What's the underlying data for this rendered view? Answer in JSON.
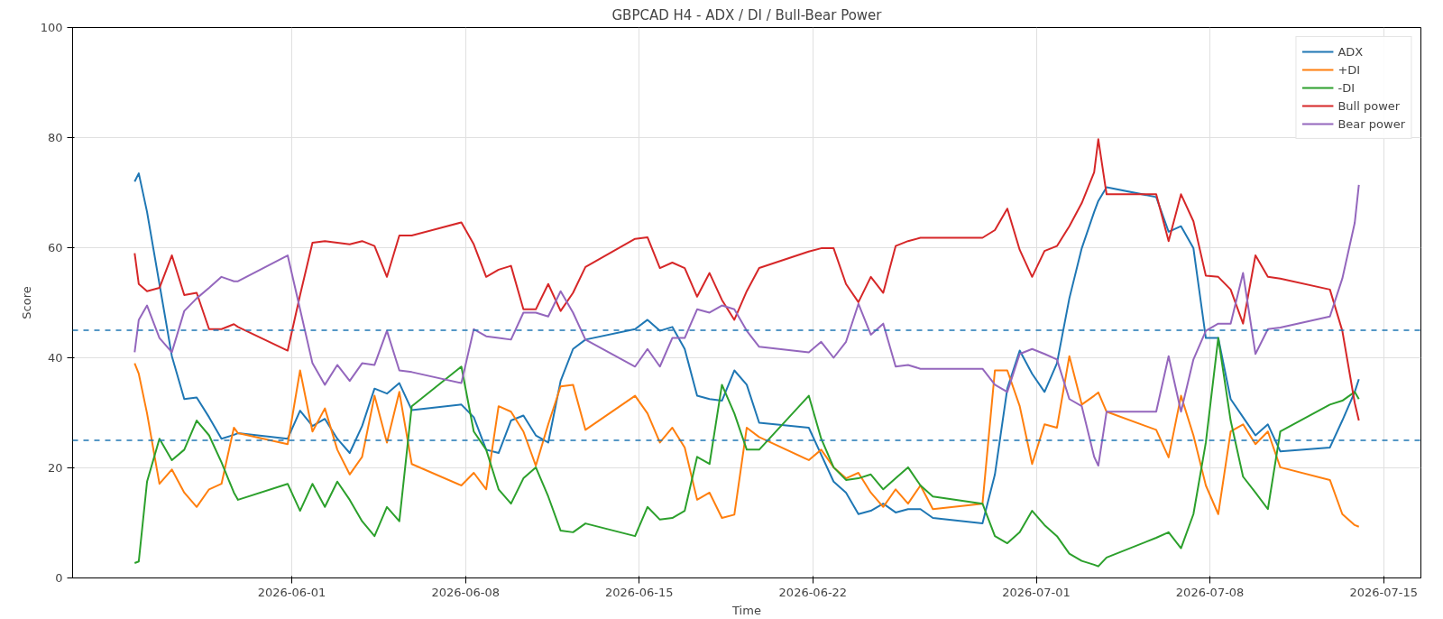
{
  "chart_data": {
    "type": "line",
    "title": "GBPCAD H4 - ADX / DI / Bull-Bear Power",
    "xlabel": "Time",
    "ylabel": "Score",
    "x": [
      "2026-05-25T16:00",
      "2026-05-25T20:00",
      "2026-05-26T04:00",
      "2026-05-26T16:00",
      "2026-05-27T04:00",
      "2026-05-27T16:00",
      "2026-05-28T04:00",
      "2026-05-28T16:00",
      "2026-05-29T04:00",
      "2026-05-29T16:00",
      "2026-05-29T20:00",
      "2026-05-31T20:00",
      "2026-06-01T08:00",
      "2026-06-01T20:00",
      "2026-06-02T08:00",
      "2026-06-02T20:00",
      "2026-06-03T08:00",
      "2026-06-03T20:00",
      "2026-06-04T08:00",
      "2026-06-04T20:00",
      "2026-06-05T08:00",
      "2026-06-05T20:00",
      "2026-06-07T20:00",
      "2026-06-08T08:00",
      "2026-06-08T20:00",
      "2026-06-09T08:00",
      "2026-06-09T20:00",
      "2026-06-10T08:00",
      "2026-06-10T20:00",
      "2026-06-11T08:00",
      "2026-06-11T20:00",
      "2026-06-12T08:00",
      "2026-06-12T20:00",
      "2026-06-14T20:00",
      "2026-06-15T08:00",
      "2026-06-15T20:00",
      "2026-06-16T08:00",
      "2026-06-16T20:00",
      "2026-06-17T08:00",
      "2026-06-17T20:00",
      "2026-06-18T08:00",
      "2026-06-18T20:00",
      "2026-06-19T08:00",
      "2026-06-19T20:00",
      "2026-06-21T20:00",
      "2026-06-22T08:00",
      "2026-06-22T20:00",
      "2026-06-23T08:00",
      "2026-06-23T20:00",
      "2026-06-24T08:00",
      "2026-06-24T20:00",
      "2026-06-25T08:00",
      "2026-06-25T20:00",
      "2026-06-26T08:00",
      "2026-06-26T20:00",
      "2026-06-28T20:00",
      "2026-06-29T08:00",
      "2026-06-29T20:00",
      "2026-06-30T08:00",
      "2026-06-30T20:00",
      "2026-07-01T08:00",
      "2026-07-01T20:00",
      "2026-07-02T08:00",
      "2026-07-02T20:00",
      "2026-07-03T08:00",
      "2026-07-03T12:00",
      "2026-07-03T20:00",
      "2026-07-05T20:00",
      "2026-07-06T08:00",
      "2026-07-06T20:00",
      "2026-07-07T08:00",
      "2026-07-07T20:00",
      "2026-07-08T08:00",
      "2026-07-08T20:00",
      "2026-07-09T08:00",
      "2026-07-09T20:00",
      "2026-07-10T08:00",
      "2026-07-10T20:00",
      "2026-07-12T20:00",
      "2026-07-13T08:00",
      "2026-07-13T20:00",
      "2026-07-14T00:00"
    ],
    "series": [
      {
        "name": "ADX",
        "color": "#1f77b4",
        "values": [
          72.0,
          73.5,
          66.5,
          53.4,
          40.3,
          32.5,
          32.8,
          29.2,
          25.3,
          26,
          26.3,
          25.3,
          30.4,
          27.6,
          28.9,
          25.3,
          22.7,
          27.6,
          34.4,
          33.5,
          35.4,
          30.5,
          31.5,
          29.2,
          23.3,
          22.7,
          28.6,
          29.5,
          25.9,
          24.6,
          35.8,
          41.6,
          43.3,
          45.2,
          46.9,
          44.9,
          45.6,
          41.6,
          33.1,
          32.5,
          32.2,
          37.7,
          35.1,
          28.2,
          27.3,
          22.4,
          17.5,
          15.5,
          11.6,
          12.2,
          13.5,
          11.9,
          12.5,
          12.5,
          10.9,
          9.9,
          18.8,
          34.4,
          41.3,
          37.1,
          33.8,
          39.0,
          50.8,
          59.9,
          66.5,
          68.5,
          71.0,
          69.2,
          62.9,
          63.9,
          59.9,
          43.6,
          43.6,
          32.5,
          29.2,
          25.9,
          27.9,
          23.0,
          23.7,
          28.6,
          33.8,
          36.1
        ]
      },
      {
        "name": "+DI",
        "color": "#ff7f0e",
        "values": [
          39.0,
          37.1,
          29.9,
          17.1,
          19.7,
          15.5,
          12.9,
          16.1,
          17.1,
          27.3,
          26.3,
          24.3,
          37.7,
          26.6,
          30.8,
          23.3,
          18.8,
          22.0,
          33.1,
          24.6,
          33.8,
          20.7,
          16.8,
          19.1,
          16.1,
          31.2,
          30.2,
          26.6,
          20.4,
          27.9,
          34.8,
          35.1,
          26.9,
          33.1,
          29.9,
          24.6,
          27.3,
          23.7,
          14.2,
          15.5,
          10.9,
          11.5,
          27.3,
          25.6,
          21.4,
          23.3,
          20.1,
          18.1,
          19.1,
          15.5,
          12.9,
          16.1,
          13.5,
          16.8,
          12.5,
          13.5,
          37.7,
          37.7,
          31.2,
          20.7,
          27.9,
          27.3,
          40.3,
          31.5,
          33.1,
          33.7,
          30.2,
          26.9,
          21.9,
          33.1,
          25.9,
          16.8,
          11.6,
          26.6,
          27.9,
          24.3,
          26.6,
          20.1,
          17.8,
          11.6,
          9.6,
          9.3
        ]
      },
      {
        "name": "-DI",
        "color": "#2ca02c",
        "values": [
          2.7,
          3.0,
          17.5,
          25.3,
          21.4,
          23.3,
          28.6,
          25.9,
          21.0,
          15.5,
          14.2,
          17.1,
          12.2,
          17.1,
          12.9,
          17.5,
          14.2,
          10.3,
          7.6,
          12.9,
          10.3,
          31.2,
          38.4,
          26.6,
          23.3,
          16.1,
          13.5,
          18.1,
          20.1,
          14.8,
          8.6,
          8.3,
          9.9,
          7.6,
          12.9,
          10.6,
          10.9,
          12.2,
          22.0,
          20.7,
          35.1,
          29.9,
          23.3,
          23.3,
          33.1,
          25.3,
          20.1,
          17.8,
          18.1,
          18.8,
          16.1,
          18.1,
          20.1,
          16.8,
          14.8,
          13.5,
          7.6,
          6.3,
          8.3,
          12.2,
          9.6,
          7.6,
          4.4,
          3.1,
          2.4,
          2.1,
          3.7,
          7.3,
          8.3,
          5.4,
          11.6,
          24.6,
          43.6,
          28.6,
          18.4,
          15.5,
          12.5,
          26.6,
          31.5,
          32.2,
          33.8,
          32.5
        ]
      },
      {
        "name": "Bull power",
        "color": "#d62728",
        "values": [
          59.0,
          53.4,
          52.1,
          52.7,
          58.6,
          51.4,
          51.8,
          45.2,
          45.2,
          46.1,
          45.6,
          41.3,
          51.4,
          60.9,
          61.2,
          60.9,
          60.6,
          61.2,
          60.3,
          54.7,
          62.2,
          62.2,
          64.6,
          60.6,
          54.7,
          56.0,
          56.7,
          48.8,
          48.8,
          53.4,
          48.5,
          51.8,
          56.5,
          61.6,
          61.9,
          56.3,
          57.3,
          56.3,
          51.1,
          55.4,
          50.5,
          46.9,
          52.1,
          56.3,
          59.3,
          59.9,
          59.9,
          53.4,
          50.1,
          54.7,
          51.8,
          60.3,
          61.2,
          61.8,
          61.8,
          61.8,
          63.2,
          67.1,
          59.6,
          54.7,
          59.4,
          60.3,
          63.9,
          68.1,
          73.7,
          79.7,
          69.7,
          69.7,
          61.2,
          69.7,
          64.8,
          54.9,
          54.7,
          52.4,
          46.2,
          58.6,
          54.7,
          54.4,
          52.4,
          44.9,
          31.8,
          28.6
        ]
      },
      {
        "name": "Bear power",
        "color": "#9467bd",
        "values": [
          41.0,
          46.9,
          49.5,
          43.6,
          41.0,
          48.5,
          50.8,
          52.7,
          54.7,
          53.9,
          53.9,
          58.6,
          48.8,
          39.0,
          35.1,
          38.7,
          35.8,
          39.0,
          38.7,
          44.9,
          37.7,
          37.4,
          35.4,
          45.2,
          43.9,
          43.6,
          43.3,
          48.2,
          48.2,
          47.5,
          52.1,
          48.2,
          43.3,
          38.4,
          41.6,
          38.4,
          43.6,
          43.6,
          48.8,
          48.2,
          49.5,
          48.8,
          44.9,
          42.0,
          41.0,
          42.9,
          40.0,
          42.9,
          49.8,
          44.2,
          46.2,
          38.4,
          38.7,
          38.0,
          38.0,
          38.0,
          35.1,
          33.8,
          40.7,
          41.6,
          40.7,
          39.7,
          32.5,
          31.2,
          22.0,
          20.4,
          30.2,
          30.2,
          40.3,
          30.2,
          39.7,
          44.9,
          46.2,
          46.2,
          55.4,
          40.7,
          45.2,
          45.5,
          47.5,
          54.4,
          64.5,
          71.4
        ]
      }
    ],
    "xlim": [
      "2026-05-23T04:00",
      "2026-07-16T12:00"
    ],
    "xticks": [
      "2026-06-01",
      "2026-06-08",
      "2026-06-15",
      "2026-06-22",
      "2026-07-01",
      "2026-07-08",
      "2026-07-15"
    ],
    "ylim": [
      0,
      100
    ],
    "yticks": [
      0,
      20,
      40,
      60,
      80,
      100
    ],
    "ref_lines": [
      {
        "axis": "y",
        "value": 45,
        "color": "#1f77b4",
        "line_style": "dashed"
      },
      {
        "axis": "y",
        "value": 25,
        "color": "#1f77b4",
        "line_style": "dashed"
      }
    ],
    "grid": true,
    "legend": "top right",
    "marker": "none",
    "line_style": "solid"
  }
}
